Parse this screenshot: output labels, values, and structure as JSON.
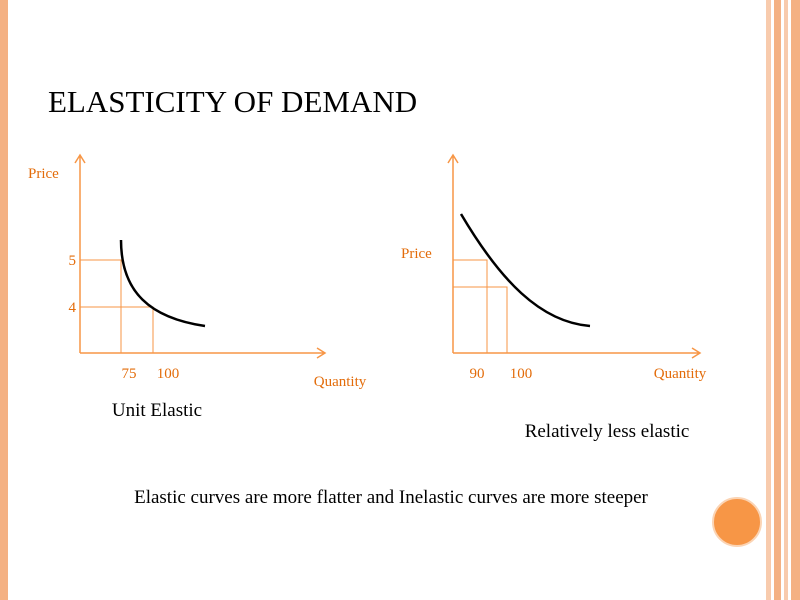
{
  "title": "ELASTICITY OF DEMAND",
  "diagrams": [
    {
      "y_label": "Price",
      "x_label": "Quantity",
      "y_ticks": [
        5,
        4
      ],
      "x_ticks": [
        75,
        100
      ],
      "caption": "Unit Elastic"
    },
    {
      "y_label": "Price",
      "x_label": "Quantity",
      "x_ticks": [
        90,
        100
      ],
      "caption": "Relatively less elastic"
    }
  ],
  "footer": "Elastic curves are more flatter and Inelastic curves are more steeper"
}
